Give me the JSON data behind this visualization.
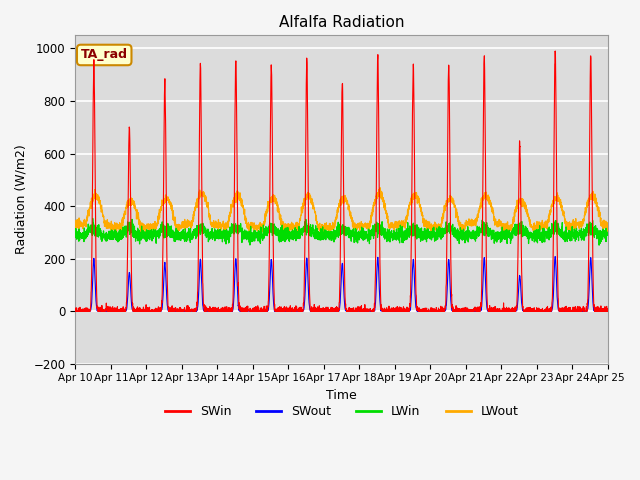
{
  "title": "Alfalfa Radiation",
  "xlabel": "Time",
  "ylabel": "Radiation (W/m2)",
  "annotation": "TA_rad",
  "ylim": [
    -200,
    1050
  ],
  "n_days": 15,
  "background_color": "#dcdcdc",
  "fig_background": "#f5f5f5",
  "grid_color": "#ffffff",
  "series_colors": {
    "SWin": "#ff0000",
    "SWout": "#0000ff",
    "LWin": "#00dd00",
    "LWout": "#ffaa00"
  },
  "x_tick_labels": [
    "Apr 10",
    "Apr 11",
    "Apr 12",
    "Apr 13",
    "Apr 14",
    "Apr 15",
    "Apr 16",
    "Apr 17",
    "Apr 18",
    "Apr 19",
    "Apr 20",
    "Apr 21",
    "Apr 22",
    "Apr 23",
    "Apr 24",
    "Apr 25"
  ],
  "SWin_peaks": [
    940,
    700,
    870,
    940,
    950,
    940,
    960,
    880,
    970,
    940,
    930,
    970,
    640,
    990,
    980
  ],
  "LWout_peaks": [
    440,
    420,
    430,
    450,
    440,
    430,
    440,
    430,
    450,
    440,
    430,
    440,
    420,
    430,
    440
  ],
  "LWout_base": [
    330,
    320,
    320,
    330,
    325,
    320,
    320,
    320,
    325,
    330,
    320,
    335,
    320,
    325,
    330
  ],
  "LWin_base": 290,
  "SWout_ratio": 0.21
}
